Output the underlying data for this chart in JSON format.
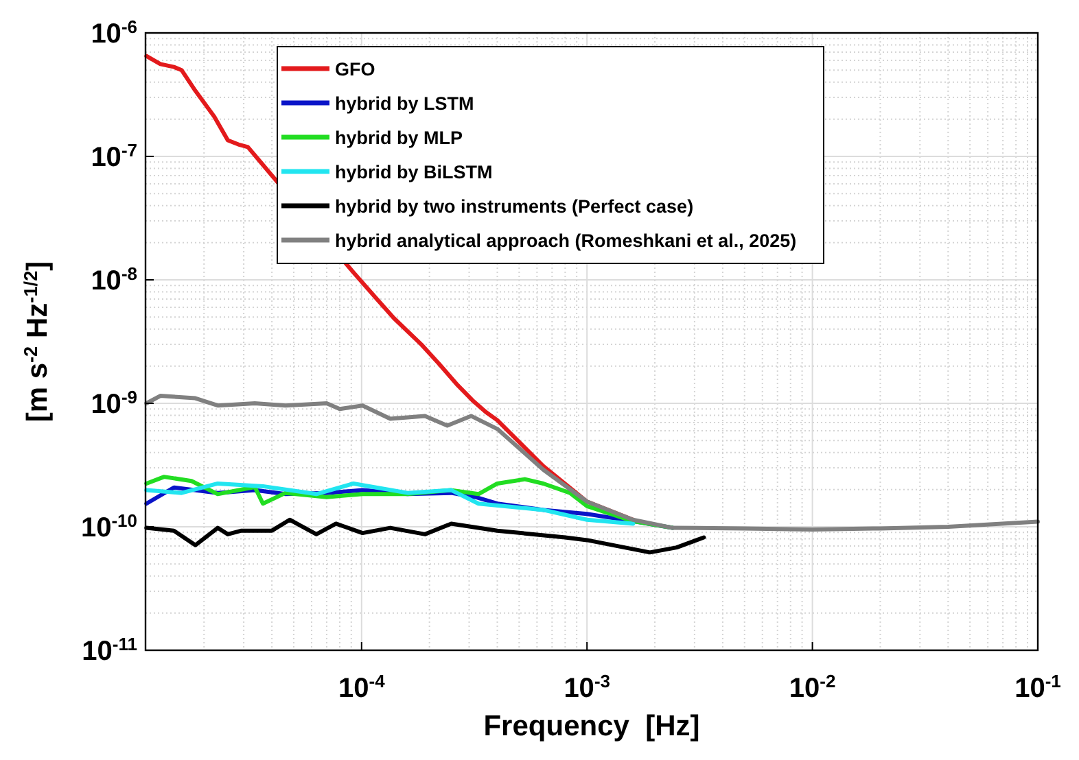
{
  "chart_data": {
    "type": "line",
    "xlabel": "Frequency  [Hz]",
    "ylabel": "[m s$^{-2}$ Hz$^{-1/2}$]",
    "log": "xy",
    "grid": true,
    "legend": "top",
    "line_style": "solid",
    "marker": "none",
    "xlim": [
      1.1e-05,
      0.1
    ],
    "ylim": [
      1e-11,
      1e-06
    ],
    "xticks": [
      {
        "value": 0.0001,
        "label": "10$^{-4}$"
      },
      {
        "value": 0.001,
        "label": "10$^{-3}$"
      },
      {
        "value": 0.01,
        "label": "10$^{-2}$"
      },
      {
        "value": 0.1,
        "label": "10$^{-1}$"
      }
    ],
    "yticks": [
      {
        "value": 1e-11,
        "label": "10$^{-11}$"
      },
      {
        "value": 1e-10,
        "label": "10$^{-10}$"
      },
      {
        "value": 1e-09,
        "label": "10$^{-9}$"
      },
      {
        "value": 1e-08,
        "label": "10$^{-8}$"
      },
      {
        "value": 1e-07,
        "label": "10$^{-7}$"
      },
      {
        "value": 1e-06,
        "label": "10$^{-6}$"
      }
    ],
    "series": [
      {
        "name": "GFO",
        "color": "#e31a1c",
        "x": [
          1.11e-05,
          1.28e-05,
          1.47e-05,
          1.59e-05,
          1.83e-05,
          2.22e-05,
          2.55e-05,
          2.84e-05,
          3.13e-05,
          3.6e-05,
          9.2e-05,
          0.000116,
          0.000139,
          0.000184,
          0.00022,
          0.000267,
          0.00031,
          0.000356,
          0.0004,
          0.00064,
          0.001,
          0.0016
        ],
        "values": [
          6.5e-07,
          5.6e-07,
          5.3e-07,
          5e-07,
          3.4e-07,
          2.1e-07,
          1.35e-07,
          1.25e-07,
          1.19e-07,
          8.8e-08,
          1.15e-08,
          7.1e-09,
          4.9e-09,
          3e-09,
          2.1e-09,
          1.4e-09,
          1.06e-09,
          8.5e-10,
          7.3e-10,
          3.1e-10,
          1.6e-10,
          1.14e-10
        ]
      },
      {
        "name": "hybrid by LSTM",
        "color": "#0a14c8",
        "x": [
          1.11e-05,
          1.47e-05,
          2.3e-05,
          3.36e-05,
          4.6e-05,
          7e-05,
          0.000101,
          0.00016,
          0.00025,
          0.00032,
          0.0004,
          0.00064,
          0.001,
          0.0016,
          0.0024
        ],
        "values": [
          1.54e-10,
          2.08e-10,
          1.88e-10,
          1.98e-10,
          1.84e-10,
          1.88e-10,
          1.98e-10,
          1.84e-10,
          1.88e-10,
          1.74e-10,
          1.54e-10,
          1.37e-10,
          1.27e-10,
          1.11e-10,
          9.8e-11
        ]
      },
      {
        "name": "hybrid by MLP",
        "color": "#22dd22",
        "x": [
          1.11e-05,
          1.33e-05,
          1.76e-05,
          2.3e-05,
          3.36e-05,
          3.65e-05,
          4.6e-05,
          7e-05,
          0.000101,
          0.00016,
          0.00025,
          0.00033,
          0.0004,
          0.00053,
          0.00064,
          0.00084,
          0.001,
          0.0016,
          0.0024
        ],
        "values": [
          2.24e-10,
          2.54e-10,
          2.35e-10,
          1.84e-10,
          2.1e-10,
          1.54e-10,
          1.88e-10,
          1.74e-10,
          1.84e-10,
          1.84e-10,
          1.98e-10,
          1.84e-10,
          2.24e-10,
          2.43e-10,
          2.24e-10,
          1.88e-10,
          1.47e-10,
          1.11e-10,
          9.8e-11
        ]
      },
      {
        "name": "hybrid by BiLSTM",
        "color": "#22e5f0",
        "x": [
          1.11e-05,
          1.59e-05,
          2.3e-05,
          3.65e-05,
          6.3e-05,
          9.2e-05,
          0.00016,
          0.00025,
          0.00033,
          0.00064,
          0.001,
          0.0016
        ],
        "values": [
          1.98e-10,
          1.88e-10,
          2.24e-10,
          2.13e-10,
          1.84e-10,
          2.24e-10,
          1.88e-10,
          1.98e-10,
          1.54e-10,
          1.37e-10,
          1.14e-10,
          1.06e-10
        ]
      },
      {
        "name": "hybrid by two instruments (Perfect case)",
        "color": "#000000",
        "x": [
          1.11e-05,
          1.47e-05,
          1.83e-05,
          2.3e-05,
          2.55e-05,
          2.93e-05,
          4e-05,
          4.8e-05,
          6.3e-05,
          7.7e-05,
          0.000101,
          0.000134,
          0.000191,
          0.00025,
          0.0004,
          0.0008,
          0.001,
          0.0019,
          0.0025,
          0.0033
        ],
        "values": [
          9.8e-11,
          9.3e-11,
          7.1e-11,
          9.8e-11,
          8.7e-11,
          9.3e-11,
          9.3e-11,
          1.14e-10,
          8.7e-11,
          1.06e-10,
          8.9e-11,
          9.8e-11,
          8.7e-11,
          1.06e-10,
          9.3e-11,
          8.2e-11,
          7.8e-11,
          6.2e-11,
          6.8e-11,
          8.2e-11
        ]
      },
      {
        "name": "hybrid analytical approach (Romeshkani et al., 2025)",
        "color": "#808080",
        "x": [
          1.11e-05,
          1.28e-05,
          1.83e-05,
          2.3e-05,
          3.36e-05,
          4.6e-05,
          7e-05,
          8e-05,
          0.000101,
          0.000134,
          0.000191,
          0.00024,
          0.000306,
          0.0004,
          0.00064,
          0.001,
          0.0016,
          0.0024,
          0.005,
          0.01,
          0.02,
          0.04,
          0.1
        ],
        "values": [
          1e-09,
          1.15e-09,
          1.1e-09,
          9.6e-10,
          1e-09,
          9.6e-10,
          1e-09,
          9e-10,
          9.6e-10,
          7.5e-10,
          7.9e-10,
          6.6e-10,
          7.9e-10,
          6.2e-10,
          2.9e-10,
          1.6e-10,
          1.14e-10,
          9.8e-11,
          9.7e-11,
          9.5e-11,
          9.7e-11,
          1e-10,
          1.1e-10
        ]
      }
    ]
  }
}
